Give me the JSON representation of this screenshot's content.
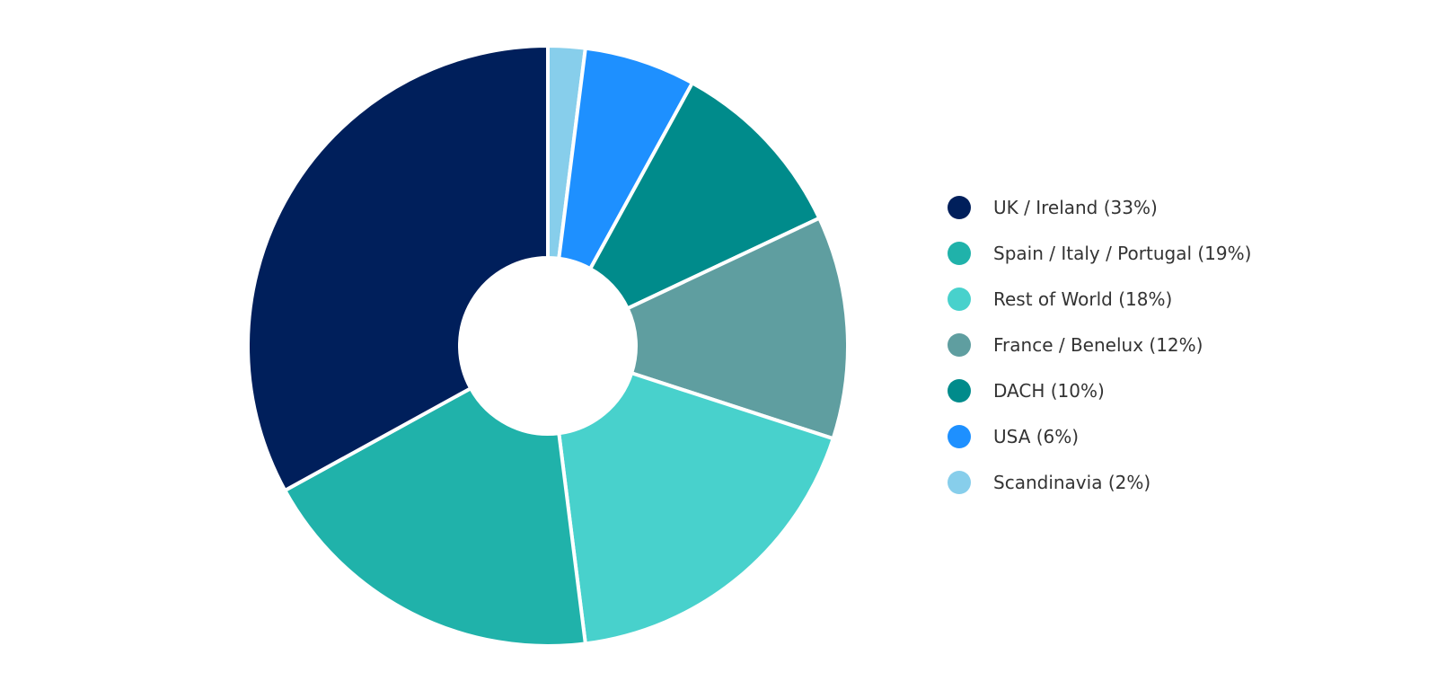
{
  "chart_data": {
    "type": "pie",
    "title": "",
    "donut": true,
    "slices": [
      {
        "label": "Scandinavia (2%)",
        "value": 2,
        "color": "#87CEEB"
      },
      {
        "label": "USA (6%)",
        "value": 6,
        "color": "#1E90FF"
      },
      {
        "label": "DACH (10%)",
        "value": 10,
        "color": "#008B8B"
      },
      {
        "label": "France / Benelux (12%)",
        "value": 12,
        "color": "#5F9EA0"
      },
      {
        "label": "Rest of World (18%)",
        "value": 18,
        "color": "#48D1CC"
      },
      {
        "label": "Spain / Italy / Portugal (19%)",
        "value": 19,
        "color": "#20B2AA"
      },
      {
        "label": "UK / Ireland (33%)",
        "value": 33,
        "color": "#001F5B"
      }
    ],
    "legend": {
      "placement": "right",
      "order": [
        "UK / Ireland (33%)",
        "Spain / Italy / Portugal (19%)",
        "Rest of World (18%)",
        "France / Benelux (12%)",
        "DACH (10%)",
        "USA (6%)",
        "Scandinavia (2%)"
      ]
    }
  }
}
